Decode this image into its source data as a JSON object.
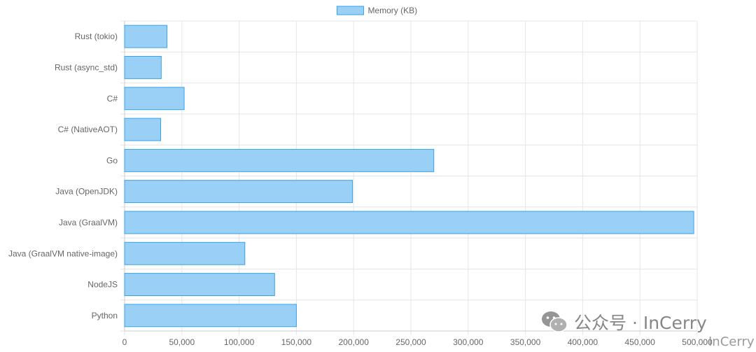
{
  "chart_data": {
    "type": "bar",
    "orientation": "horizontal",
    "categories": [
      "Rust (tokio)",
      "Rust (async_std)",
      "C#",
      "C# (NativeAOT)",
      "Go",
      "Java (OpenJDK)",
      "Java (GraalVM)",
      "Java (GraalVM native-image)",
      "NodeJS",
      "Python"
    ],
    "series": [
      {
        "name": "Memory (KB)",
        "values": [
          37000,
          32000,
          52000,
          31500,
          270000,
          199000,
          497000,
          105000,
          131000,
          150000
        ]
      }
    ],
    "xlim": [
      0,
      500000
    ],
    "xticks": [
      0,
      50000,
      100000,
      150000,
      200000,
      250000,
      300000,
      350000,
      400000,
      450000,
      500000
    ],
    "grid": true,
    "legend": "top-center",
    "colors": {
      "bar_fill": "#9ad0f5",
      "bar_stroke": "#36a2eb",
      "grid": "#e5e5e5",
      "text": "#666666"
    }
  },
  "watermark": {
    "text": "公众号 · InCerry",
    "secondary": "InCerry",
    "icon": "wechat-icon"
  }
}
